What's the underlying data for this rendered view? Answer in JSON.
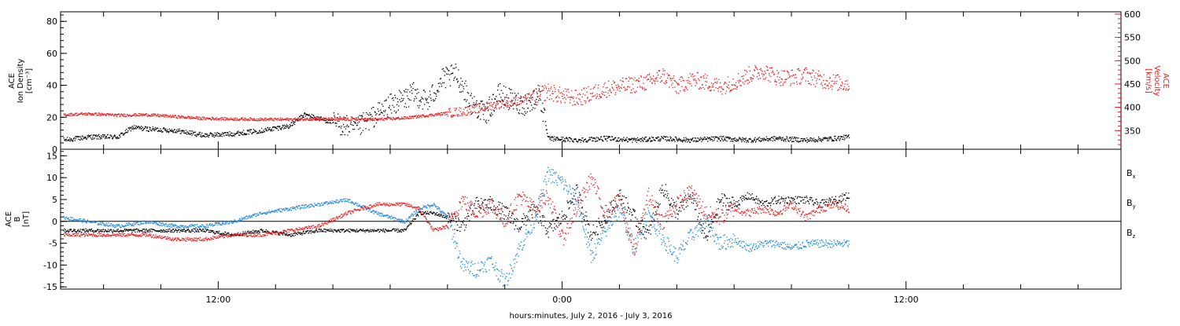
{
  "colors": {
    "black": "#000000",
    "red": "#e8191c",
    "blue": "#1a86e0",
    "background": "#ffffff"
  },
  "xaxis": {
    "title": "hours:minutes, July  2, 2016 - July  3, 2016",
    "tick_labels": [
      "12:00",
      "0:00",
      "12:00"
    ],
    "tick_hours": [
      12,
      24,
      36
    ],
    "range_hours": [
      6.5,
      43.5
    ],
    "minor_step_hours": 2
  },
  "chart_data": [
    {
      "type": "scatter",
      "panel": "top",
      "left_axis": {
        "label_lines": [
          "ACE",
          "Ion Density",
          "[cm⁻³]"
        ],
        "ticks": [
          "0",
          "20",
          "40",
          "60",
          "80"
        ],
        "range": [
          0,
          86
        ]
      },
      "right_axis": {
        "label_lines": [
          "ACE",
          "Velocity",
          "[km/s]"
        ],
        "ticks": [
          "350",
          "400",
          "450",
          "500",
          "550",
          "600"
        ],
        "range": [
          310,
          605
        ]
      },
      "series": [
        {
          "color": "#000000",
          "axis": "left",
          "x_hours": [
            6.6,
            7.5,
            8.5,
            9.0,
            9.5,
            10.5,
            11.5,
            12.5,
            13.5,
            14.5,
            15.0,
            16.0,
            16.8,
            17.5,
            18.0,
            18.5,
            18.8,
            19.3,
            19.8,
            20.3,
            20.8,
            21.3,
            21.8,
            22.3,
            22.8,
            23.2,
            23.5,
            24.5,
            25.5,
            26.5,
            27.5,
            28.5,
            29.5,
            30.5,
            31.5,
            32.5,
            33.5,
            34.0
          ],
          "y": [
            6,
            8,
            8,
            14,
            13,
            12,
            9,
            10,
            12,
            15,
            22,
            17,
            13,
            22,
            28,
            32,
            35,
            30,
            44,
            47,
            30,
            22,
            35,
            30,
            28,
            35,
            7,
            6,
            7,
            6,
            7,
            6,
            7,
            6,
            7,
            6,
            7,
            8
          ]
        },
        {
          "color": "#e8191c",
          "axis": "right",
          "x_hours": [
            6.6,
            7.5,
            8.5,
            9.5,
            10.5,
            11.5,
            12.5,
            13.5,
            14.5,
            15.5,
            16.5,
            17.5,
            18.5,
            19.5,
            20.5,
            21.0,
            21.5,
            22.0,
            22.5,
            23.0,
            23.5,
            24.0,
            24.5,
            25.0,
            25.5,
            26.0,
            26.5,
            27.0,
            27.5,
            28.0,
            28.5,
            29.0,
            29.5,
            30.0,
            30.5,
            31.0,
            31.5,
            32.0,
            32.5,
            33.0,
            33.5,
            34.0
          ],
          "y": [
            385,
            387,
            384,
            385,
            381,
            377,
            376,
            375,
            375,
            376,
            375,
            375,
            378,
            385,
            392,
            398,
            405,
            410,
            415,
            425,
            435,
            425,
            420,
            430,
            440,
            445,
            450,
            455,
            470,
            445,
            460,
            455,
            445,
            455,
            470,
            480,
            465,
            465,
            470,
            460,
            455,
            450
          ]
        }
      ]
    },
    {
      "type": "scatter",
      "panel": "bottom",
      "left_axis": {
        "label_lines": [
          "ACE",
          "B",
          "[nT]"
        ],
        "ticks": [
          "-15",
          "-10",
          "-5",
          "0",
          "5",
          "10",
          "15"
        ],
        "range": [
          -15.5,
          16.5
        ]
      },
      "legend": [
        {
          "name": "B",
          "subscript": "x",
          "color": "#000000"
        },
        {
          "name": "B",
          "subscript": "y",
          "color": "#1a86e0"
        },
        {
          "name": "B",
          "subscript": "z",
          "color": "#e8191c"
        }
      ],
      "series": [
        {
          "name": "Bx",
          "color": "#000000",
          "x_hours": [
            6.6,
            7.5,
            8.5,
            9.5,
            10.5,
            11.5,
            12.5,
            13.5,
            14.5,
            15.5,
            16.5,
            17.5,
            18.5,
            19.0,
            19.5,
            20.0,
            20.5,
            21.0,
            21.5,
            22.0,
            22.5,
            23.0,
            23.5,
            24.0,
            24.5,
            25.0,
            25.5,
            26.0,
            26.5,
            27.0,
            27.5,
            28.0,
            28.5,
            29.0,
            29.5,
            30.0,
            30.5,
            31.0,
            31.5,
            32.0,
            32.5,
            33.0,
            33.5,
            34.0
          ],
          "y": [
            -2,
            -2,
            -2,
            -2,
            -2,
            -2,
            -3,
            -2,
            -3,
            -2,
            -2,
            -2,
            -2,
            2,
            2,
            1,
            -1,
            4,
            4,
            2,
            -1,
            3,
            -2,
            1,
            7,
            -3,
            1,
            6,
            1,
            -3,
            8,
            2,
            6,
            -4,
            5,
            4,
            6,
            4,
            5,
            5,
            5,
            4,
            5,
            6
          ]
        },
        {
          "name": "By",
          "color": "#1a86e0",
          "x_hours": [
            6.6,
            7.5,
            8.5,
            9.5,
            10.5,
            11.5,
            12.5,
            13.5,
            14.5,
            15.5,
            16.5,
            17.5,
            18.5,
            19.0,
            19.5,
            20.0,
            20.5,
            21.0,
            21.5,
            22.0,
            22.5,
            23.0,
            23.5,
            24.0,
            24.5,
            25.0,
            25.5,
            26.0,
            26.5,
            27.0,
            27.5,
            28.0,
            28.5,
            29.0,
            29.5,
            30.0,
            30.5,
            31.0,
            31.5,
            32.0,
            32.5,
            33.0,
            33.5,
            34.0
          ],
          "y": [
            1,
            0,
            -1,
            0,
            -1,
            -1,
            0,
            2,
            3,
            4,
            5,
            2,
            0,
            3,
            4,
            1,
            -10,
            -11,
            -9,
            -14,
            -6,
            0,
            11,
            9,
            5,
            -8,
            -2,
            3,
            -6,
            2,
            -4,
            -8,
            -3,
            0,
            -5,
            -4,
            -6,
            -5,
            -5,
            -6,
            -5,
            -5,
            -5,
            -5
          ]
        },
        {
          "name": "Bz",
          "color": "#e8191c",
          "x_hours": [
            6.6,
            7.5,
            8.5,
            9.5,
            10.5,
            11.5,
            12.5,
            13.5,
            14.5,
            15.5,
            16.5,
            17.5,
            18.5,
            19.0,
            19.5,
            20.0,
            20.5,
            21.0,
            21.5,
            22.0,
            22.5,
            23.0,
            23.5,
            24.0,
            24.5,
            25.0,
            25.5,
            26.0,
            26.5,
            27.0,
            27.5,
            28.0,
            28.5,
            29.0,
            29.5,
            30.0,
            30.5,
            31.0,
            31.5,
            32.0,
            32.5,
            33.0,
            33.5,
            34.0
          ],
          "y": [
            -3,
            -3,
            -3,
            -3,
            -4,
            -4,
            -3,
            -3,
            -2,
            -1,
            2,
            4,
            4,
            3,
            -2,
            -1,
            5,
            2,
            4,
            0,
            6,
            3,
            6,
            -4,
            3,
            10,
            2,
            5,
            -7,
            6,
            0,
            4,
            7,
            2,
            1,
            3,
            2,
            3,
            2,
            4,
            1,
            3,
            4,
            3
          ]
        }
      ]
    }
  ]
}
